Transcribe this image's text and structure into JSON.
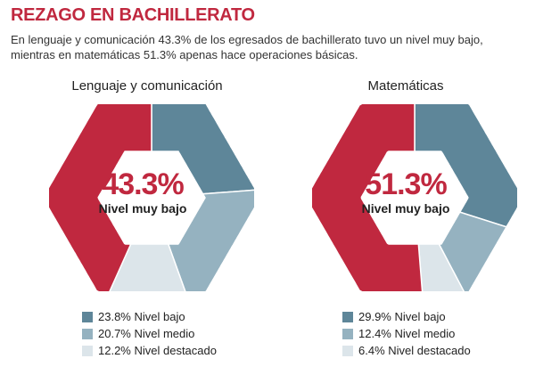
{
  "header": {
    "title": "REZAGO EN BACHILLERATO",
    "subtitle": "En lenguaje y comunicación 43.3% de los egresados de bachillerato tuvo un nivel muy bajo, mientras en matemáticas 51.3% apenas hace operaciones básicas."
  },
  "colors": {
    "muy_bajo": "#c0283f",
    "bajo": "#5e8699",
    "medio": "#95b2c0",
    "destacado": "#dce5ea"
  },
  "charts": [
    {
      "title": "Lenguaje y comunicación",
      "center_value": "43.3%",
      "center_label": "Nivel muy bajo",
      "legend": [
        "23.8% Nivel bajo",
        "20.7% Nivel medio",
        "12.2% Nivel destacado"
      ]
    },
    {
      "title": "Matemáticas",
      "center_value": "51.3%",
      "center_label": "Nivel muy bajo",
      "legend": [
        "29.9% Nivel bajo",
        "12.4% Nivel medio",
        "6.4% Nivel destacado"
      ]
    }
  ],
  "chart_data": [
    {
      "type": "pie",
      "title": "Lenguaje y comunicación",
      "categories": [
        "Nivel muy bajo",
        "Nivel bajo",
        "Nivel medio",
        "Nivel destacado"
      ],
      "values": [
        43.3,
        23.8,
        20.7,
        12.2
      ],
      "shape": "hexagonal donut"
    },
    {
      "type": "pie",
      "title": "Matemáticas",
      "categories": [
        "Nivel muy bajo",
        "Nivel bajo",
        "Nivel medio",
        "Nivel destacado"
      ],
      "values": [
        51.3,
        29.9,
        12.4,
        6.4
      ],
      "shape": "hexagonal donut"
    }
  ]
}
